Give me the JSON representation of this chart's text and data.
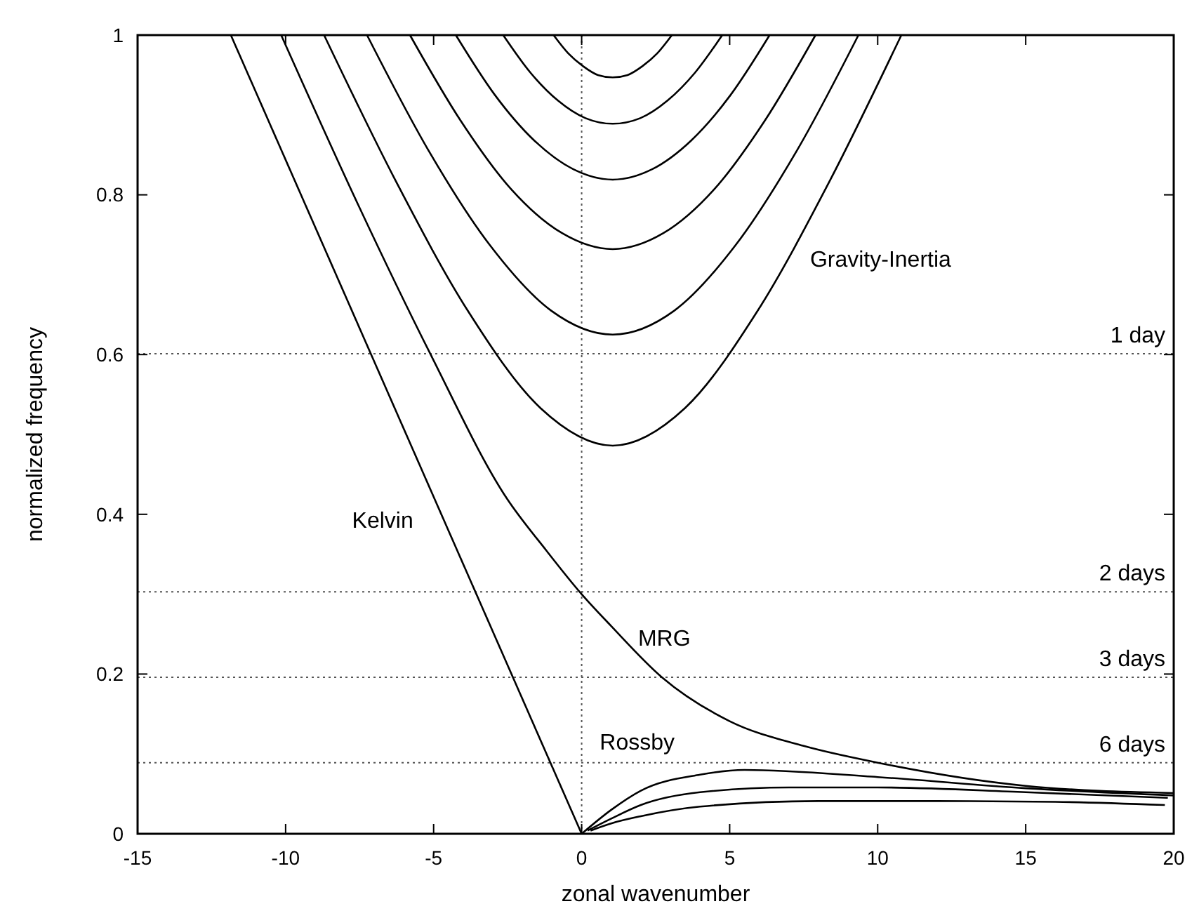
{
  "chart_data": {
    "type": "line",
    "xlabel": "zonal wavenumber",
    "ylabel": "normalized frequency",
    "xlim": [
      -15,
      20
    ],
    "ylim": [
      0,
      1
    ],
    "xticks": [
      -15,
      -10,
      -5,
      0,
      5,
      10,
      15,
      20
    ],
    "yticks": [
      0,
      0.2,
      0.4,
      0.6,
      0.8,
      1
    ],
    "grid": false,
    "marker": "none",
    "line_style": "solid",
    "series": [
      {
        "color": "#000000",
        "x": [
          -11.85,
          0
        ],
        "values": [
          1,
          0
        ]
      },
      {
        "color": "#000000",
        "x": [
          -10.15,
          -7.58,
          -5.1,
          -2.53,
          -1.2,
          0,
          1,
          2.71,
          5,
          7.5,
          10,
          15,
          20
        ],
        "values": [
          1,
          0.79,
          0.6,
          0.42,
          0.355,
          0.3,
          0.26,
          0.196,
          0.141,
          0.11,
          0.089,
          0.06,
          0.051
        ]
      },
      {
        "color": "#000000",
        "x": [
          -8.7,
          -6.26,
          -3.83,
          -1.39,
          1.05,
          3.49,
          5.93,
          8.36,
          10.8
        ],
        "values": [
          1,
          0.816,
          0.654,
          0.533,
          0.486,
          0.533,
          0.654,
          0.816,
          1
        ]
      },
      {
        "color": "#000000",
        "x": [
          -7.25,
          -5.18,
          -3.1,
          -1.03,
          1.05,
          3.13,
          5.2,
          7.28,
          9.35
        ],
        "values": [
          1,
          0.856,
          0.737,
          0.655,
          0.625,
          0.655,
          0.737,
          0.856,
          1
        ]
      },
      {
        "color": "#000000",
        "x": [
          -5.8,
          -4.09,
          -2.38,
          -0.66,
          1.05,
          2.76,
          4.48,
          6.19,
          7.9
        ],
        "values": [
          1,
          0.893,
          0.807,
          0.752,
          0.732,
          0.752,
          0.807,
          0.893,
          1
        ]
      },
      {
        "color": "#000000",
        "x": [
          -4.25,
          -2.93,
          -1.6,
          -0.28,
          1.05,
          2.38,
          3.7,
          5.03,
          6.35
        ],
        "values": [
          1,
          0.925,
          0.868,
          0.832,
          0.819,
          0.832,
          0.868,
          0.925,
          1
        ]
      },
      {
        "color": "#000000",
        "x": [
          -2.65,
          -1.73,
          -0.8,
          0.13,
          1.05,
          1.98,
          2.9,
          3.83,
          4.75
        ],
        "values": [
          1,
          0.953,
          0.918,
          0.896,
          0.889,
          0.896,
          0.918,
          0.953,
          1
        ]
      },
      {
        "color": "#000000",
        "x": [
          -0.95,
          -0.45,
          0.05,
          0.55,
          1.05,
          1.55,
          2.05,
          2.55,
          3.05
        ],
        "values": [
          1,
          0.977,
          0.961,
          0.95,
          0.947,
          0.95,
          0.961,
          0.977,
          1
        ]
      },
      {
        "color": "#000000",
        "x": [
          0,
          1,
          2,
          4,
          5.5,
          10,
          15,
          20
        ],
        "values": [
          0,
          0.03,
          0.054,
          0.074,
          0.08,
          0.071,
          0.057,
          0.048
        ]
      },
      {
        "color": "#000000",
        "x": [
          0.2,
          1,
          2,
          4,
          7,
          10,
          15,
          19.8
        ],
        "values": [
          0.004,
          0.019,
          0.036,
          0.052,
          0.058,
          0.058,
          0.052,
          0.045
        ]
      },
      {
        "color": "#000000",
        "x": [
          0.3,
          1,
          2,
          4,
          8,
          12,
          16,
          19.7
        ],
        "values": [
          0.004,
          0.013,
          0.022,
          0.034,
          0.041,
          0.041,
          0.04,
          0.036
        ]
      }
    ],
    "ref_lines": [
      {
        "axis": "y",
        "value": 0.601,
        "label": "1 day",
        "line_style": "dotted"
      },
      {
        "axis": "y",
        "value": 0.303,
        "label": "2 days",
        "line_style": "dotted"
      },
      {
        "axis": "y",
        "value": 0.196,
        "label": "3 days",
        "line_style": "dotted"
      },
      {
        "axis": "y",
        "value": 0.089,
        "label": "6 days",
        "line_style": "dotted"
      },
      {
        "axis": "x",
        "value": 0,
        "label": null,
        "line_style": "dotted"
      }
    ],
    "annotations": [
      "Gravity-Inertia",
      "Kelvin",
      "MRG",
      "Rossby"
    ]
  }
}
